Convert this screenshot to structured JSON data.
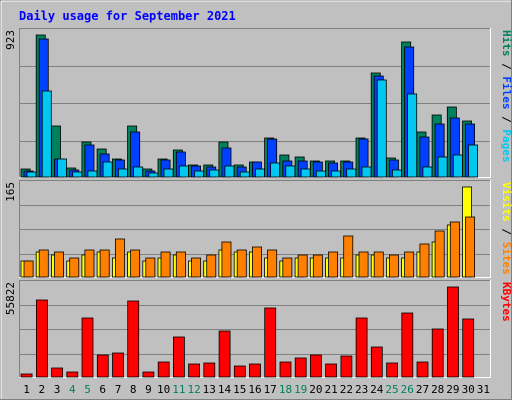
{
  "title": "Daily usage for September 2021",
  "colors": {
    "hits": "#00805c",
    "files": "#0040ff",
    "pages": "#00c8f0",
    "visits": "#ffff00",
    "sites": "#ff8000",
    "kbytes": "#ff0000",
    "weekend_day": "#00805c",
    "weekday": "#000000",
    "title": "#0000ff"
  },
  "chart_data": [
    {
      "type": "bar",
      "panel": "top",
      "ymax_label": "923",
      "ylim": [
        0,
        923
      ],
      "legend": [
        "Pages",
        "Files",
        "Hits"
      ],
      "categories": [
        "1",
        "2",
        "3",
        "4",
        "5",
        "6",
        "7",
        "8",
        "9",
        "10",
        "11",
        "12",
        "13",
        "14",
        "15",
        "16",
        "17",
        "18",
        "19",
        "20",
        "21",
        "22",
        "23",
        "24",
        "25",
        "26",
        "27",
        "28",
        "29",
        "30",
        "31"
      ],
      "weekend": [
        false,
        false,
        false,
        true,
        true,
        false,
        false,
        false,
        false,
        false,
        true,
        true,
        false,
        false,
        false,
        false,
        false,
        true,
        true,
        false,
        false,
        false,
        false,
        false,
        true,
        true,
        false,
        false,
        false,
        false,
        false
      ],
      "series": [
        {
          "name": "Hits",
          "values": [
            50,
            923,
            330,
            60,
            230,
            185,
            120,
            330,
            50,
            115,
            175,
            75,
            75,
            225,
            75,
            100,
            255,
            140,
            130,
            105,
            105,
            105,
            255,
            675,
            125,
            880,
            295,
            400,
            455,
            365,
            0
          ]
        },
        {
          "name": "Files",
          "values": [
            40,
            900,
            120,
            45,
            210,
            150,
            110,
            290,
            40,
            110,
            165,
            70,
            65,
            190,
            65,
            95,
            250,
            105,
            105,
            100,
            90,
            100,
            245,
            655,
            110,
            845,
            260,
            345,
            385,
            345,
            0
          ]
        },
        {
          "name": "Pages",
          "values": [
            30,
            560,
            120,
            35,
            40,
            95,
            50,
            65,
            25,
            50,
            70,
            40,
            45,
            70,
            35,
            55,
            90,
            70,
            50,
            40,
            40,
            50,
            65,
            630,
            45,
            540,
            65,
            130,
            140,
            205,
            0
          ]
        }
      ]
    },
    {
      "type": "bar",
      "panel": "middle",
      "ymax_label": "165",
      "ylim": [
        0,
        165
      ],
      "legend": [
        "Sites",
        "Visits"
      ],
      "categories": [
        "1",
        "2",
        "3",
        "4",
        "5",
        "6",
        "7",
        "8",
        "9",
        "10",
        "11",
        "12",
        "13",
        "14",
        "15",
        "16",
        "17",
        "18",
        "19",
        "20",
        "21",
        "22",
        "23",
        "24",
        "25",
        "26",
        "27",
        "28",
        "29",
        "30",
        "31"
      ],
      "series": [
        {
          "name": "Visits",
          "values": [
            30,
            45,
            40,
            30,
            40,
            45,
            35,
            45,
            30,
            35,
            40,
            30,
            30,
            50,
            45,
            45,
            35,
            30,
            35,
            35,
            35,
            35,
            40,
            40,
            35,
            35,
            45,
            65,
            95,
            165,
            0
          ]
        },
        {
          "name": "Sites",
          "values": [
            30,
            50,
            45,
            35,
            50,
            50,
            70,
            50,
            35,
            45,
            45,
            35,
            40,
            65,
            50,
            55,
            50,
            35,
            40,
            40,
            45,
            75,
            45,
            45,
            40,
            45,
            60,
            85,
            100,
            110,
            0
          ]
        }
      ]
    },
    {
      "type": "bar",
      "panel": "bottom",
      "ymax_label": "55822",
      "ylim": [
        0,
        55822
      ],
      "legend": [
        "KBytes"
      ],
      "categories": [
        "1",
        "2",
        "3",
        "4",
        "5",
        "6",
        "7",
        "8",
        "9",
        "10",
        "11",
        "12",
        "13",
        "14",
        "15",
        "16",
        "17",
        "18",
        "19",
        "20",
        "21",
        "22",
        "23",
        "24",
        "25",
        "26",
        "27",
        "28",
        "29",
        "30",
        "31"
      ],
      "series": [
        {
          "name": "KBytes",
          "values": [
            1800,
            47500,
            5800,
            3200,
            36500,
            13500,
            14800,
            47000,
            2900,
            9300,
            24600,
            7800,
            8800,
            28800,
            6600,
            8000,
            43000,
            9300,
            11500,
            13500,
            8000,
            13100,
            36500,
            18800,
            8900,
            40000,
            9300,
            30000,
            55822,
            36000,
            0
          ]
        }
      ]
    }
  ]
}
